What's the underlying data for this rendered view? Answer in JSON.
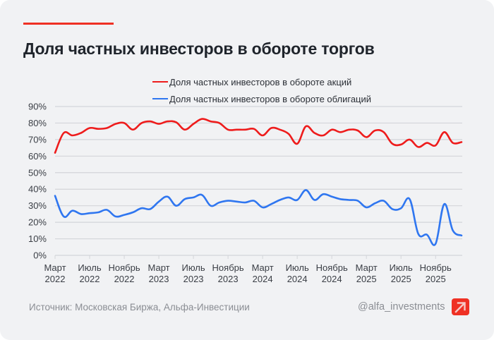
{
  "header": {
    "title": "Доля частных инвесторов в обороте торгов"
  },
  "footer": {
    "source": "Источник: Московская Биржа, Альфа-Инвестиции",
    "handle": "@alfa_investments",
    "logo_icon": "alfa-arrow-logo"
  },
  "colors": {
    "accent": "#ef3124",
    "stocks_series": "#ee1c1c",
    "bonds_series": "#2f76f0",
    "grid": "#d3d5d9",
    "title": "#1f242b"
  },
  "chart_data": {
    "type": "line",
    "title": "Доля частных инвесторов в обороте торгов",
    "xlabel": "",
    "ylabel": "",
    "ylim": [
      0,
      90
    ],
    "yticks": [
      "0%",
      "10%",
      "20%",
      "30%",
      "40%",
      "50%",
      "60%",
      "70%",
      "80%",
      "90%"
    ],
    "ytick_values": [
      0,
      10,
      20,
      30,
      40,
      50,
      60,
      70,
      80,
      90
    ],
    "grid": true,
    "legend_position": "top-right",
    "x": [
      "2022-03",
      "2022-04",
      "2022-05",
      "2022-06",
      "2022-07",
      "2022-08",
      "2022-09",
      "2022-10",
      "2022-11",
      "2022-12",
      "2023-01",
      "2023-02",
      "2023-03",
      "2023-04",
      "2023-05",
      "2023-06",
      "2023-07",
      "2023-08",
      "2023-09",
      "2023-10",
      "2023-11",
      "2023-12",
      "2024-01",
      "2024-02",
      "2024-03",
      "2024-04",
      "2024-05",
      "2024-06",
      "2024-07",
      "2024-08",
      "2024-09",
      "2024-10",
      "2024-11",
      "2024-12",
      "2025-01",
      "2025-02",
      "2025-03",
      "2025-04",
      "2025-05",
      "2025-06",
      "2025-07",
      "2025-08",
      "2025-09",
      "2025-10",
      "2025-11",
      "2025-12",
      "2026-01",
      "2026-02"
    ],
    "xticks": [
      {
        "index": 0,
        "line1": "Март",
        "line2": "2022"
      },
      {
        "index": 4,
        "line1": "Июль",
        "line2": "2022"
      },
      {
        "index": 8,
        "line1": "Ноябрь",
        "line2": "2022"
      },
      {
        "index": 12,
        "line1": "Март",
        "line2": "2023"
      },
      {
        "index": 16,
        "line1": "Июль",
        "line2": "2023"
      },
      {
        "index": 20,
        "line1": "Ноябрь",
        "line2": "2023"
      },
      {
        "index": 24,
        "line1": "Март",
        "line2": "2024"
      },
      {
        "index": 28,
        "line1": "Июль",
        "line2": "2024"
      },
      {
        "index": 32,
        "line1": "Ноябрь",
        "line2": "2024"
      },
      {
        "index": 36,
        "line1": "Март",
        "line2": "2025"
      },
      {
        "index": 40,
        "line1": "Июль",
        "line2": "2025"
      },
      {
        "index": 44,
        "line1": "Ноябрь",
        "line2": "2025"
      }
    ],
    "series": [
      {
        "name": "Доля частных инвесторов в обороте акций",
        "color": "#ee1c1c",
        "values": [
          62,
          74,
          72.5,
          74,
          77,
          76.5,
          77,
          79.5,
          80,
          76,
          80,
          81,
          79.5,
          81,
          80.5,
          76,
          79.5,
          82.5,
          81,
          80,
          76,
          76,
          76,
          76.5,
          72.5,
          77,
          76,
          73.5,
          67.5,
          78,
          74,
          72.5,
          76,
          74.5,
          76,
          75.5,
          71.5,
          75.5,
          74.5,
          67.5,
          67,
          70,
          65.5,
          68,
          66.5,
          74.5,
          68,
          68.5
        ]
      },
      {
        "name": "Доля частных инвесторов в обороте облигаций",
        "color": "#2f76f0",
        "values": [
          36,
          23.5,
          27,
          25,
          25.5,
          26,
          27.5,
          23.5,
          24.5,
          26,
          28.5,
          28,
          32.5,
          35.5,
          30,
          34,
          35,
          36.5,
          30,
          32,
          33,
          32.5,
          32,
          33,
          29,
          31,
          33.5,
          35,
          33.5,
          39.5,
          33.5,
          37,
          35.5,
          34,
          33.5,
          33,
          29,
          31.5,
          33,
          28,
          28.5,
          34,
          13,
          12.5,
          7,
          31,
          15,
          12
        ]
      }
    ]
  }
}
